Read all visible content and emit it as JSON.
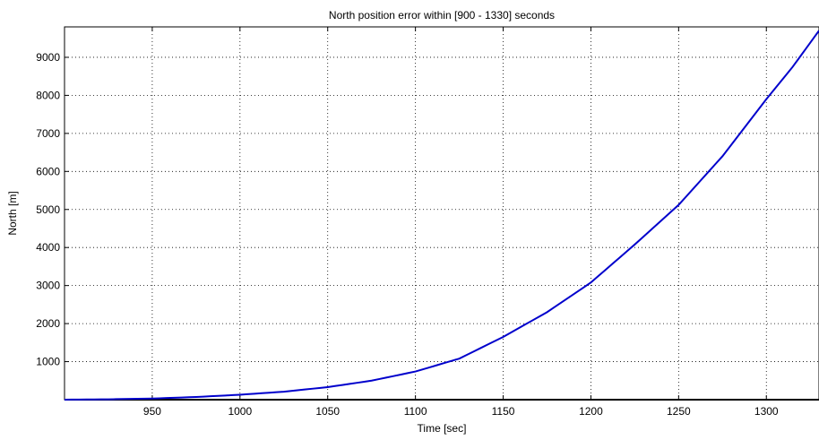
{
  "chart_data": {
    "type": "line",
    "title": "North position error within [900 - 1330] seconds",
    "xlabel": "Time [sec]",
    "ylabel": "North [m]",
    "xlim": [
      900,
      1330
    ],
    "ylim": [
      0,
      9800
    ],
    "xticks": [
      950,
      1000,
      1050,
      1100,
      1150,
      1200,
      1250,
      1300
    ],
    "yticks": [
      1000,
      2000,
      3000,
      4000,
      5000,
      6000,
      7000,
      8000,
      9000
    ],
    "grid": true,
    "line_color": "#0000cc",
    "series": [
      {
        "x": [
          900,
          925,
          950,
          975,
          1000,
          1025,
          1050,
          1075,
          1100,
          1125,
          1150,
          1175,
          1200,
          1225,
          1250,
          1275,
          1300,
          1315,
          1330
        ],
        "y": [
          0,
          10,
          30,
          70,
          130,
          210,
          330,
          500,
          740,
          1080,
          1650,
          2300,
          3080,
          4080,
          5120,
          6400,
          7900,
          8750,
          9700
        ]
      }
    ]
  }
}
